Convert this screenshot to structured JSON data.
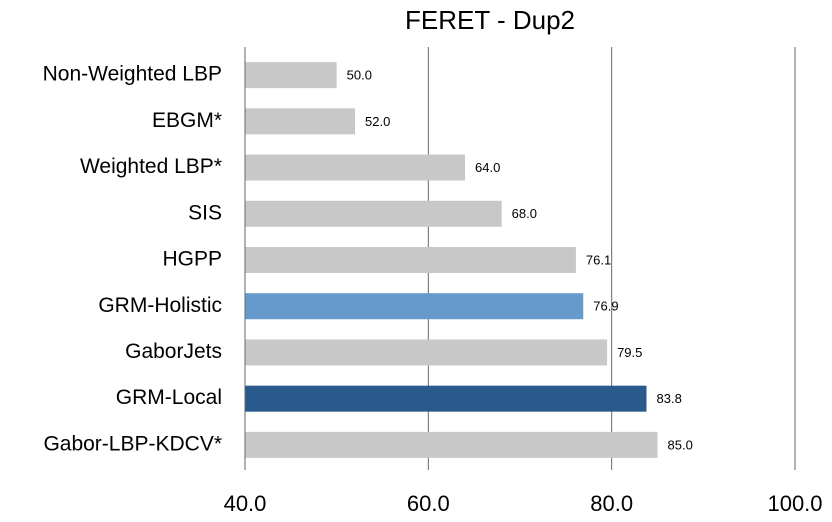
{
  "chart_data": {
    "type": "bar",
    "orientation": "horizontal",
    "title": "FERET - Dup2",
    "categories": [
      "Non-Weighted LBP",
      "EBGM*",
      "Weighted LBP*",
      "SIS",
      "HGPP",
      "GRM-Holistic",
      "GaborJets",
      "GRM-Local",
      "Gabor-LBP-KDCV*"
    ],
    "values": [
      50.0,
      52.0,
      64.0,
      68.0,
      76.1,
      76.9,
      79.5,
      83.8,
      85.0
    ],
    "value_labels": [
      "50.0",
      "52.0",
      "64.0",
      "68.0",
      "76.1",
      "76.9",
      "79.5",
      "83.8",
      "85.0"
    ],
    "colors": [
      "#c8c8c8",
      "#c8c8c8",
      "#c8c8c8",
      "#c8c8c8",
      "#c8c8c8",
      "#6699cc",
      "#c8c8c8",
      "#2a5a8c",
      "#c8c8c8"
    ],
    "xlim": [
      40,
      100
    ],
    "xticks": [
      {
        "value": 40,
        "label": "40.0"
      },
      {
        "value": 60,
        "label": "60.0"
      },
      {
        "value": 80,
        "label": "80.0"
      },
      {
        "value": 100,
        "label": "100.0"
      }
    ],
    "grid": true
  }
}
